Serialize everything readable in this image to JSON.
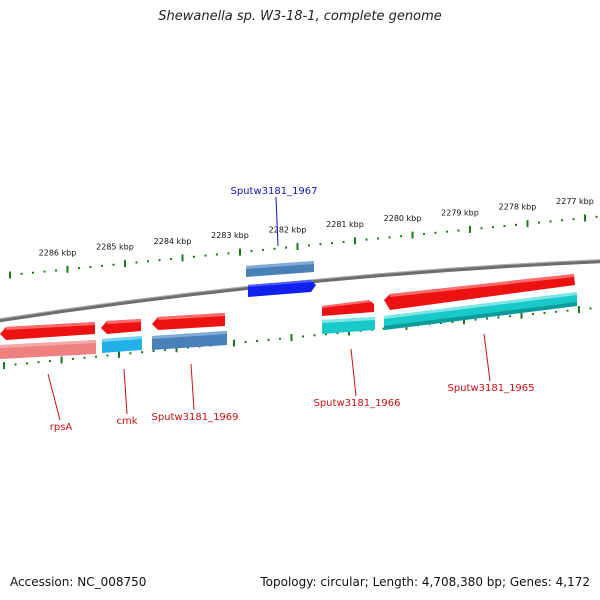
{
  "title": "Shewanella sp. W3-18-1, complete genome",
  "footer": {
    "accession": "Accession: NC_008750",
    "summary": "Topology: circular; Length: 4,708,380 bp; Genes: 4,172"
  },
  "colors": {
    "backbone": "#7a7a7a",
    "tick": "#1a7a1a",
    "cds_red": "#ee1111",
    "cds_pink": "#ee8080",
    "cds_cyan": "#19c9c9",
    "cds_sky": "#22b0e8",
    "cds_steel": "#4a80b8",
    "cds_blue": "#1020ee",
    "label_red": "#cc1111",
    "label_blue": "#1111bb"
  },
  "scale_labels": [
    "2286 kbp",
    "2285 kbp",
    "2284 kbp",
    "2283 kbp",
    "2282 kbp",
    "2281 kbp",
    "2280 kbp",
    "2279 kbp",
    "2278 kbp",
    "2277 kbp"
  ],
  "gene_labels": [
    {
      "name": "rpsA",
      "color": "label_red"
    },
    {
      "name": "cmk",
      "color": "label_red"
    },
    {
      "name": "Sputw3181_1969",
      "color": "label_red"
    },
    {
      "name": "Sputw3181_1967",
      "color": "label_blue"
    },
    {
      "name": "Sputw3181_1966",
      "color": "label_red"
    },
    {
      "name": "Sputw3181_1965",
      "color": "label_red"
    }
  ]
}
